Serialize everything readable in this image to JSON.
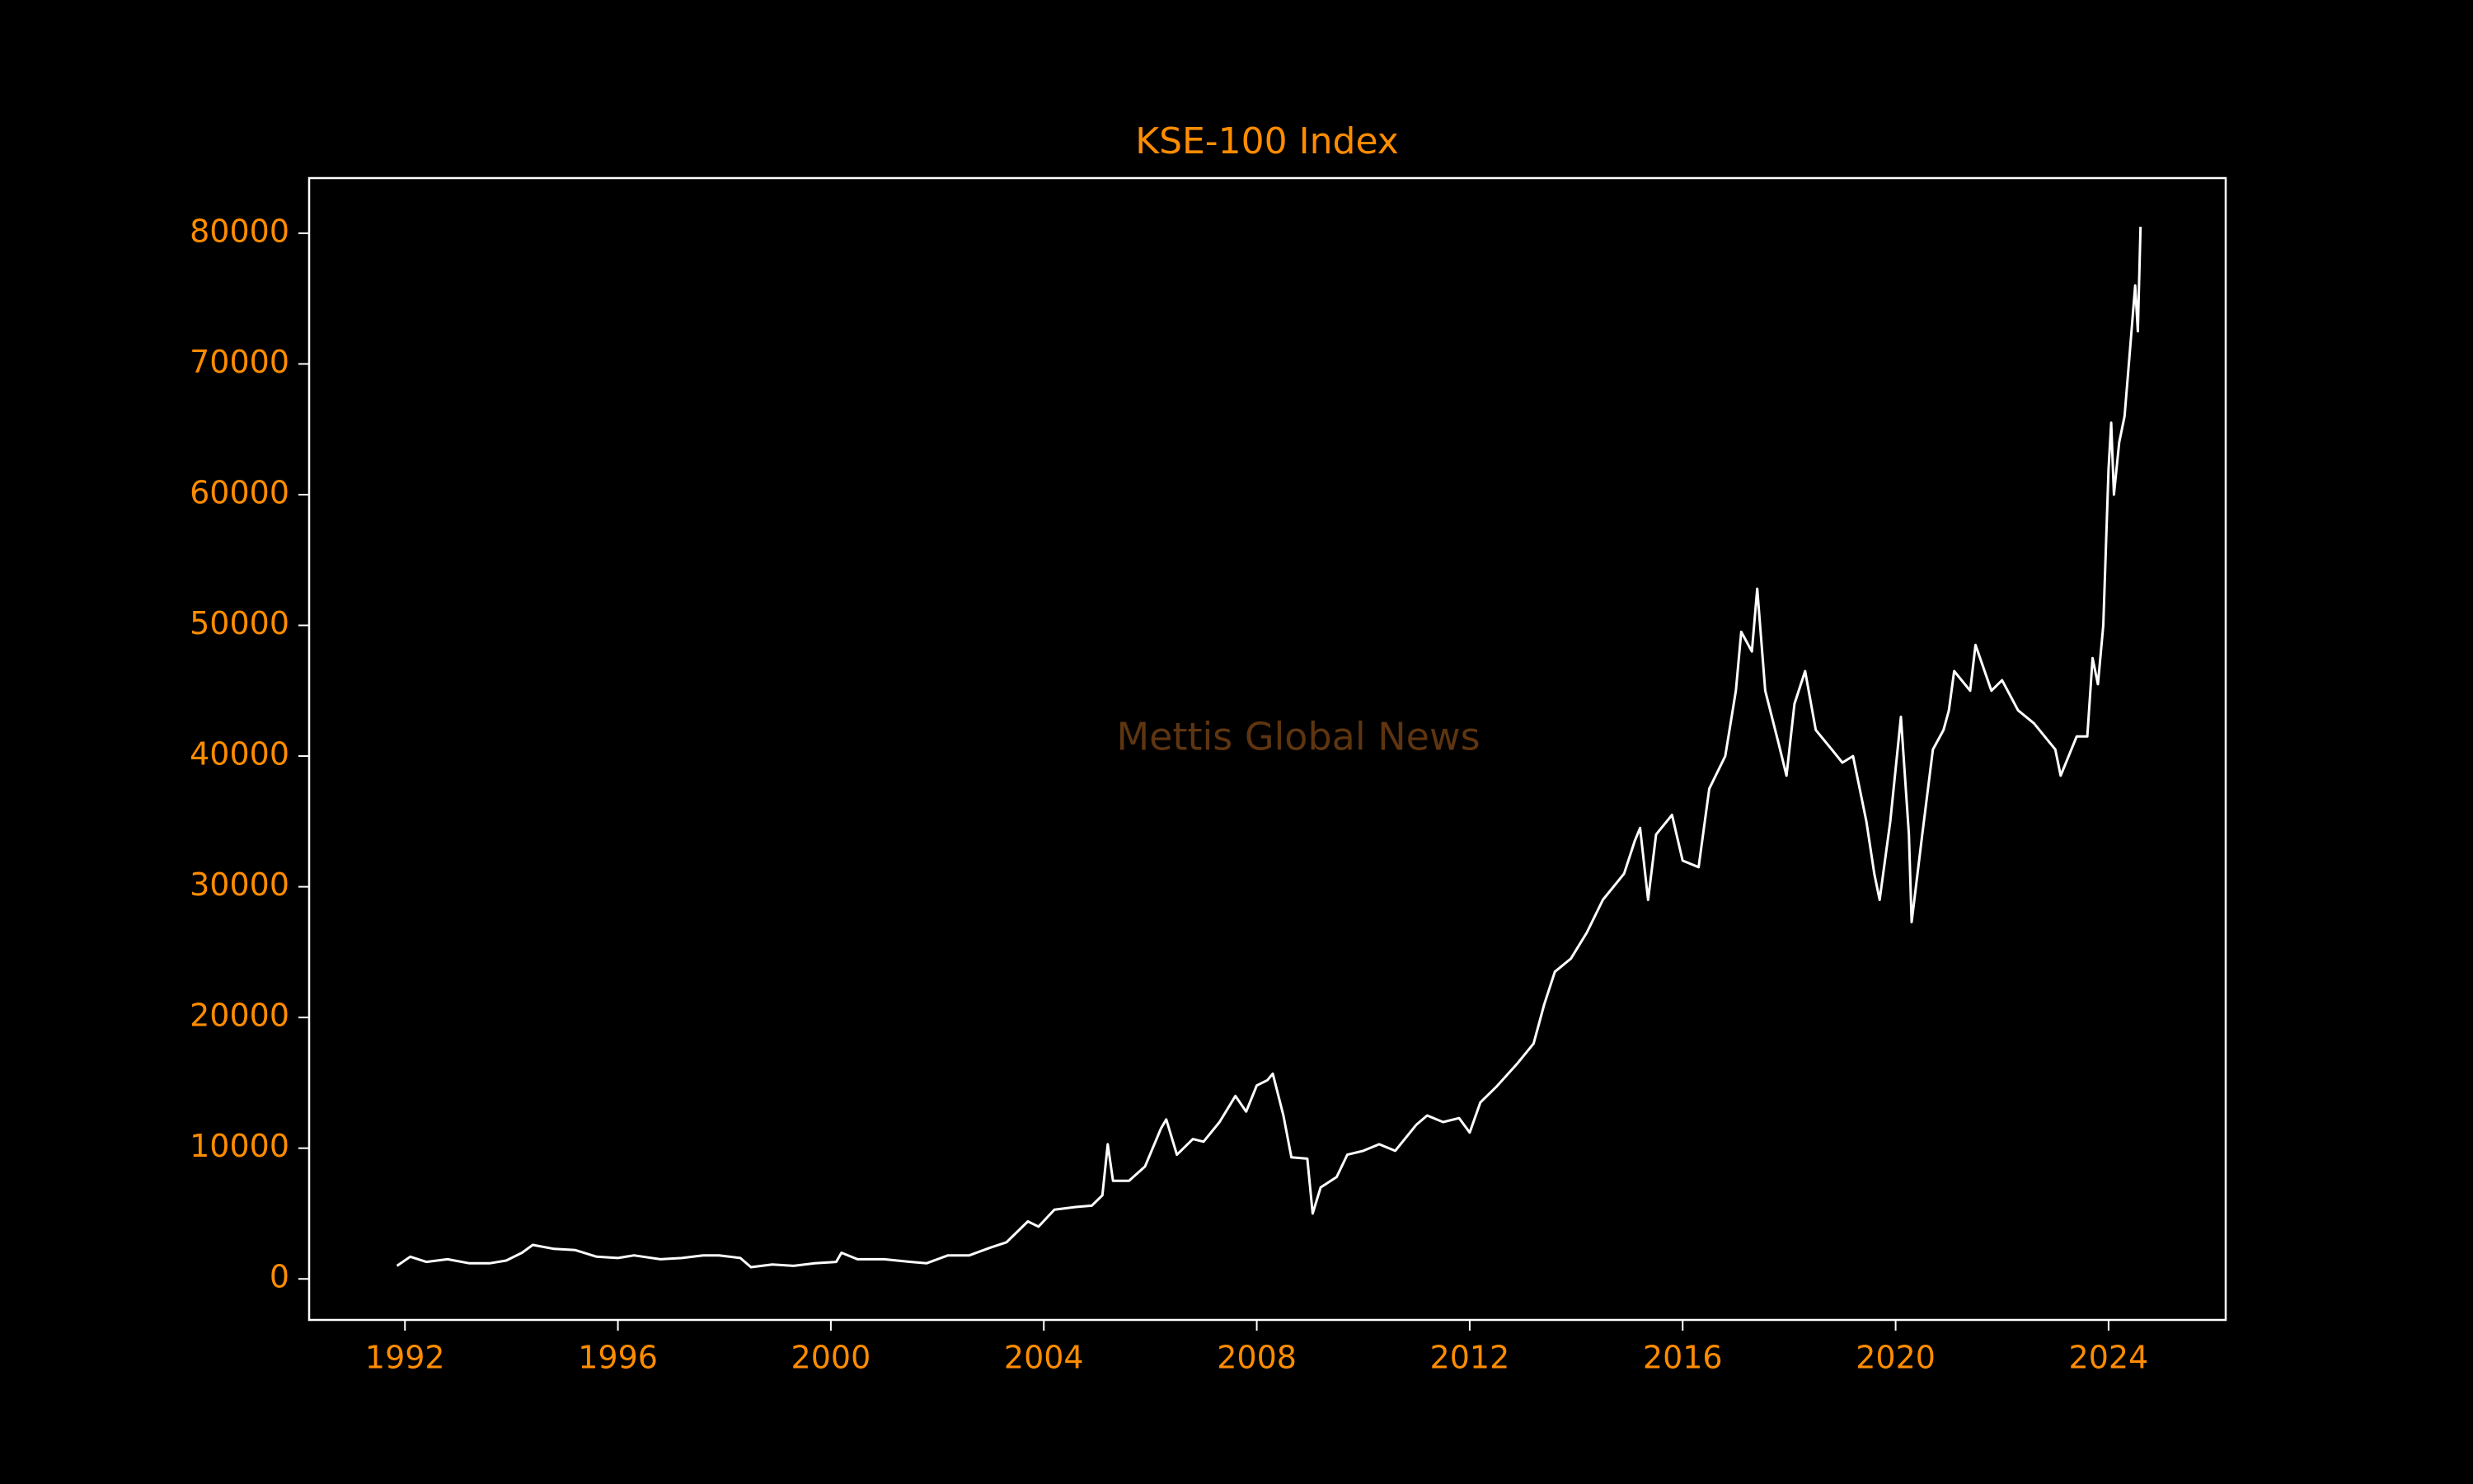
{
  "chart_data": {
    "type": "line",
    "title": "KSE-100 Index",
    "watermark": "Mettis Global News",
    "x": [
      1991.85,
      1992.1,
      1992.4,
      1992.8,
      1993.2,
      1993.6,
      1993.9,
      1994.2,
      1994.4,
      1994.8,
      1995.2,
      1995.6,
      1996.0,
      1996.3,
      1996.8,
      1997.2,
      1997.6,
      1997.9,
      1998.3,
      1998.5,
      1998.9,
      1999.3,
      1999.7,
      2000.1,
      2000.2,
      2000.5,
      2001.0,
      2001.5,
      2001.8,
      2002.2,
      2002.6,
      2003.0,
      2003.3,
      2003.7,
      2003.9,
      2004.2,
      2004.6,
      2004.9,
      2005.1,
      2005.2,
      2005.3,
      2005.6,
      2005.9,
      2006.2,
      2006.3,
      2006.5,
      2006.8,
      2007.0,
      2007.3,
      2007.6,
      2007.8,
      2008.0,
      2008.2,
      2008.3,
      2008.5,
      2008.65,
      2008.95,
      2009.05,
      2009.2,
      2009.5,
      2009.7,
      2010.0,
      2010.3,
      2010.6,
      2011.0,
      2011.2,
      2011.5,
      2011.8,
      2012.0,
      2012.2,
      2012.5,
      2012.9,
      2013.2,
      2013.4,
      2013.6,
      2013.9,
      2014.2,
      2014.5,
      2014.9,
      2015.1,
      2015.2,
      2015.35,
      2015.5,
      2015.8,
      2016.0,
      2016.3,
      2016.5,
      2016.8,
      2017.0,
      2017.1,
      2017.3,
      2017.4,
      2017.55,
      2017.8,
      2017.95,
      2018.1,
      2018.3,
      2018.5,
      2018.8,
      2019.0,
      2019.2,
      2019.45,
      2019.6,
      2019.7,
      2019.9,
      2020.05,
      2020.1,
      2020.25,
      2020.3,
      2020.5,
      2020.7,
      2020.9,
      2021.0,
      2021.1,
      2021.4,
      2021.5,
      2021.8,
      2022.0,
      2022.3,
      2022.6,
      2022.8,
      2023.0,
      2023.1,
      2023.4,
      2023.6,
      2023.7,
      2023.8,
      2023.9,
      2024.0,
      2024.05,
      2024.1,
      2024.2,
      2024.3,
      2024.4,
      2024.5,
      2024.55,
      2024.6
    ],
    "series": [
      {
        "name": "KSE-100",
        "color": "#ffffff",
        "values": [
          1000,
          1700,
          1300,
          1500,
          1200,
          1200,
          1400,
          2000,
          2600,
          2300,
          2200,
          1700,
          1600,
          1800,
          1500,
          1600,
          1800,
          1800,
          1600,
          900,
          1100,
          1000,
          1200,
          1300,
          2000,
          1500,
          1500,
          1300,
          1200,
          1800,
          1800,
          2400,
          2800,
          4400,
          4000,
          5300,
          5500,
          5600,
          6400,
          10300,
          7500,
          7500,
          8600,
          11500,
          12200,
          9500,
          10700,
          10500,
          12000,
          14000,
          12800,
          14800,
          15200,
          15700,
          12500,
          9300,
          9200,
          5000,
          7000,
          7800,
          9500,
          9800,
          10300,
          9800,
          11800,
          12500,
          12000,
          12300,
          11200,
          13500,
          14700,
          16500,
          18000,
          21000,
          23500,
          24500,
          26500,
          29000,
          31000,
          33500,
          34500,
          29000,
          34000,
          35500,
          32000,
          31500,
          37500,
          40000,
          45000,
          49500,
          48000,
          52800,
          45000,
          41000,
          38500,
          44000,
          46500,
          42000,
          40500,
          39500,
          40000,
          35000,
          31000,
          29000,
          35000,
          41000,
          43000,
          34000,
          27300,
          34000,
          40500,
          42000,
          43500,
          46500,
          45000,
          48500,
          45000,
          45800,
          43500,
          42500,
          41500,
          40500,
          38500,
          41500,
          41500,
          47500,
          45500,
          50000,
          62000,
          65500,
          60000,
          64000,
          66000,
          71000,
          76000,
          72500,
          80500
        ]
      }
    ],
    "xlim": [
      1990.2,
      2026.2
    ],
    "xticks": [
      1992,
      1996,
      2000,
      2004,
      2008,
      2012,
      2016,
      2020,
      2024
    ],
    "ylim": [
      -3140,
      84220
    ],
    "yticks": [
      0,
      10000,
      20000,
      30000,
      40000,
      50000,
      60000,
      70000,
      80000
    ]
  }
}
